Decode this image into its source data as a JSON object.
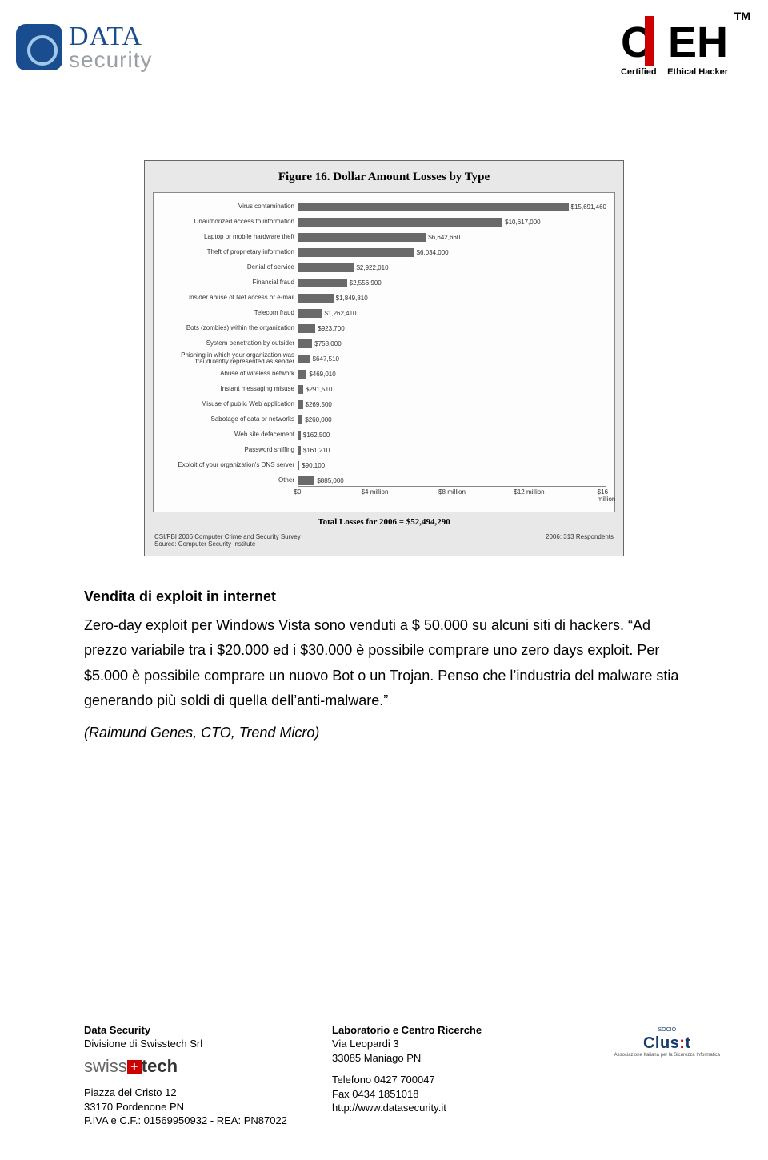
{
  "header": {
    "left_logo": {
      "line1": "DATA",
      "line2": "security"
    },
    "right_logo": {
      "tm": "TM",
      "c": "C",
      "eh": "EH",
      "sub_left": "Certified",
      "sub_right": "Ethical Hacker"
    }
  },
  "figure": {
    "title": "Figure 16. Dollar Amount Losses by Type",
    "bar_color": "#6a6a6a",
    "plot_bg": "#fdfdfd",
    "panel_bg": "#e8e8e8",
    "x_max": 16000000,
    "x_ticks": [
      {
        "pos": 0,
        "label": "$0"
      },
      {
        "pos": 4000000,
        "label": "$4 million"
      },
      {
        "pos": 8000000,
        "label": "$8 million"
      },
      {
        "pos": 12000000,
        "label": "$12 million"
      },
      {
        "pos": 16000000,
        "label": "$16 million"
      }
    ],
    "rows": [
      {
        "label": "Virus contamination",
        "value": 15691460,
        "text": "$15,691,460"
      },
      {
        "label": "Unauthorized access to information",
        "value": 10617000,
        "text": "$10,617,000"
      },
      {
        "label": "Laptop or mobile hardware theft",
        "value": 6642660,
        "text": "$6,642,660"
      },
      {
        "label": "Theft of proprietary information",
        "value": 6034000,
        "text": "$6,034,000"
      },
      {
        "label": "Denial of service",
        "value": 2922010,
        "text": "$2,922,010"
      },
      {
        "label": "Financial fraud",
        "value": 2556900,
        "text": "$2,556,900"
      },
      {
        "label": "Insider abuse of Net access or e-mail",
        "value": 1849810,
        "text": "$1,849,810"
      },
      {
        "label": "Telecom fraud",
        "value": 1262410,
        "text": "$1,262,410"
      },
      {
        "label": "Bots (zombies) within the organization",
        "value": 923700,
        "text": "$923,700"
      },
      {
        "label": "System penetration by outsider",
        "value": 758000,
        "text": "$758,000"
      },
      {
        "label": "Phishing in which your organization was fraudulently represented as sender",
        "value": 647510,
        "text": "$647,510"
      },
      {
        "label": "Abuse of wireless network",
        "value": 469010,
        "text": "$469,010"
      },
      {
        "label": "Instant messaging misuse",
        "value": 291510,
        "text": "$291,510"
      },
      {
        "label": "Misuse of public Web application",
        "value": 269500,
        "text": "$269,500"
      },
      {
        "label": "Sabotage of data or networks",
        "value": 260000,
        "text": "$260,000"
      },
      {
        "label": "Web site defacement",
        "value": 162500,
        "text": "$162,500"
      },
      {
        "label": "Password sniffing",
        "value": 161210,
        "text": "$161,210"
      },
      {
        "label": "Exploit of your organization's DNS server",
        "value": 90100,
        "text": "$90,100"
      },
      {
        "label": "Other",
        "value": 885000,
        "text": "$885,000"
      }
    ],
    "total_line": "Total Losses for 2006 = $52,494,290",
    "note_left": "CSI/FBI 2006 Computer Crime and Security Survey\nSource: Computer Security Institute",
    "note_right": "2006: 313 Respondents"
  },
  "body": {
    "heading": "Vendita di exploit in internet",
    "p1_a": "Zero-day exploit per Windows Vista sono venduti a $ 50.000 su alcuni siti di hackers. “Ad prezzo variabile tra i $20.000 ed i $30.000 è possibile comprare uno zero days exploit. Per $5.000 è possibile comprare un nuovo Bot o un Trojan. Penso che l’industria del malware stia generando più soldi di quella dell’anti-malware.”",
    "attr": "(Raimund Genes, CTO, Trend Micro)"
  },
  "footer": {
    "left": {
      "title": "Data Security",
      "line2": "Divisione di Swisstech Srl",
      "brand_a": "swiss",
      "brand_b": "tech",
      "addr1": "Piazza del Cristo 12",
      "addr2": "33170 Pordenone PN",
      "addr3": "P.IVA e C.F.: 01569950932 - REA: PN87022"
    },
    "mid": {
      "title": "Laboratorio e Centro Ricerche",
      "line2": "Via Leopardi 3",
      "line3": "33085 Maniago PN",
      "line4": "Telefono  0427 700047",
      "line5": "Fax 0434 1851018",
      "line6": "http://www.datasecurity.it"
    },
    "clusit": {
      "band": "SOCIO",
      "name_a": "Clus",
      "name_b": "t",
      "sub": "Associazione Italiana per la Sicurezza Informatica"
    }
  }
}
